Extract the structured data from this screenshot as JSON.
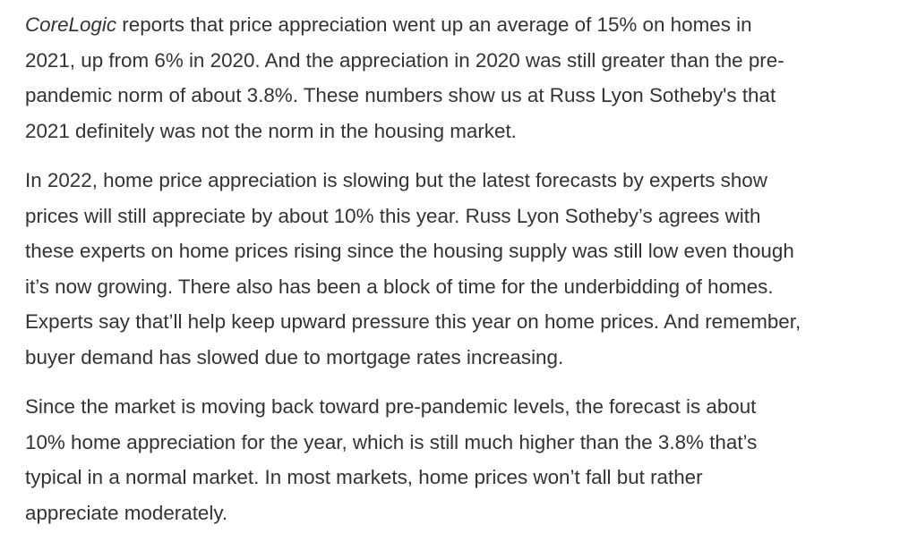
{
  "article": {
    "paragraphs": [
      {
        "lines": [
          {
            "emphasis": "CoreLogic",
            "text": " reports that price appreciation went up an average of 15% on homes in"
          },
          {
            "text": "2021, up from 6% in 2020. And the appreciation in 2020 was still greater than the pre-"
          },
          {
            "text": "pandemic norm of about 3.8%. These numbers show us at Russ Lyon Sotheby's that"
          },
          {
            "text": "2021 definitely was not the norm in the housing market."
          }
        ]
      },
      {
        "lines": [
          {
            "text": "In 2022, home price appreciation is slowing but the latest forecasts by experts show"
          },
          {
            "text": "prices will still appreciate by about 10% this year. Russ Lyon Sotheby’s agrees with"
          },
          {
            "text": "these experts on home prices rising since the housing supply was still low even though"
          },
          {
            "text": "it’s now growing. There also has been a block of time for the underbidding of homes."
          },
          {
            "text": "Experts say that’ll help keep upward pressure this year on home prices. And remember,"
          },
          {
            "text": "buyer demand has slowed due to mortgage rates increasing."
          }
        ]
      },
      {
        "lines": [
          {
            "text": "Since the market is moving back toward pre-pandemic levels, the forecast is about"
          },
          {
            "text": "10% home appreciation for the year, which is still much higher than the 3.8% that’s"
          },
          {
            "text": "typical in a normal market. In most markets, home prices won’t fall but rather"
          },
          {
            "text": "appreciate moderately."
          }
        ]
      }
    ]
  }
}
